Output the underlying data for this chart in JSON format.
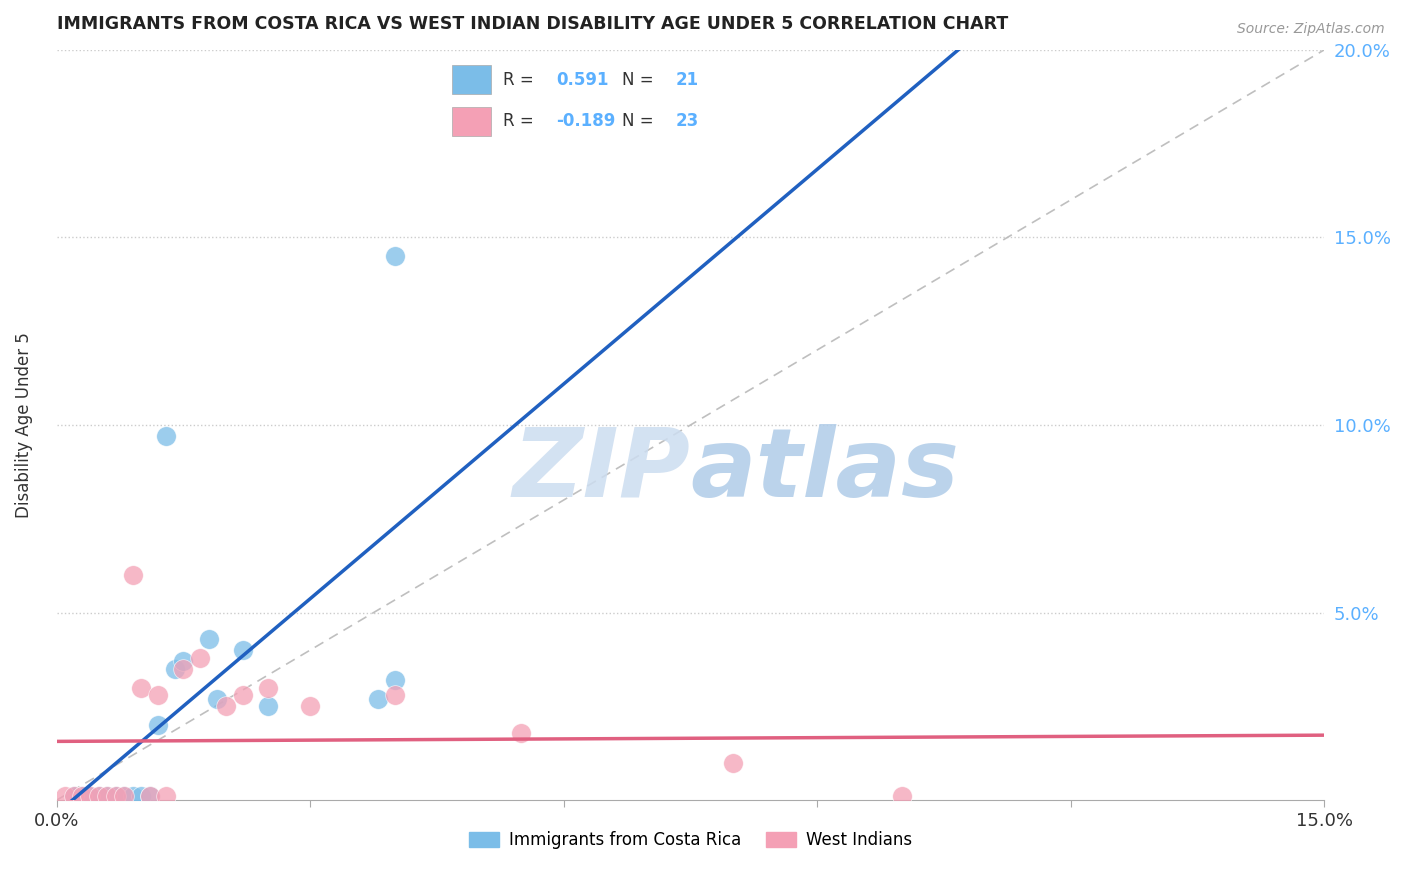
{
  "title": "IMMIGRANTS FROM COSTA RICA VS WEST INDIAN DISABILITY AGE UNDER 5 CORRELATION CHART",
  "source": "Source: ZipAtlas.com",
  "ylabel": "Disability Age Under 5",
  "xlim": [
    0.0,
    0.15
  ],
  "ylim": [
    0.0,
    0.2
  ],
  "blue_R": 0.591,
  "blue_N": 21,
  "pink_R": -0.189,
  "pink_N": 23,
  "blue_color": "#7bbde8",
  "pink_color": "#f4a0b5",
  "blue_line_color": "#2060c0",
  "pink_line_color": "#e06080",
  "right_axis_color": "#5bb0ff",
  "watermark_color": "#d0e8f5",
  "diag_line_color": "#b8b8b8",
  "blue_points": [
    [
      0.002,
      0.001
    ],
    [
      0.003,
      0.001
    ],
    [
      0.004,
      0.001
    ],
    [
      0.005,
      0.001
    ],
    [
      0.006,
      0.001
    ],
    [
      0.007,
      0.001
    ],
    [
      0.008,
      0.001
    ],
    [
      0.009,
      0.001
    ],
    [
      0.01,
      0.001
    ],
    [
      0.011,
      0.001
    ],
    [
      0.012,
      0.02
    ],
    [
      0.013,
      0.097
    ],
    [
      0.014,
      0.035
    ],
    [
      0.015,
      0.037
    ],
    [
      0.018,
      0.043
    ],
    [
      0.019,
      0.027
    ],
    [
      0.022,
      0.04
    ],
    [
      0.025,
      0.025
    ],
    [
      0.038,
      0.027
    ],
    [
      0.04,
      0.032
    ],
    [
      0.04,
      0.145
    ]
  ],
  "pink_points": [
    [
      0.001,
      0.001
    ],
    [
      0.002,
      0.001
    ],
    [
      0.003,
      0.001
    ],
    [
      0.004,
      0.001
    ],
    [
      0.005,
      0.001
    ],
    [
      0.006,
      0.001
    ],
    [
      0.007,
      0.001
    ],
    [
      0.008,
      0.001
    ],
    [
      0.009,
      0.06
    ],
    [
      0.01,
      0.03
    ],
    [
      0.011,
      0.001
    ],
    [
      0.012,
      0.028
    ],
    [
      0.013,
      0.001
    ],
    [
      0.015,
      0.035
    ],
    [
      0.017,
      0.038
    ],
    [
      0.02,
      0.025
    ],
    [
      0.022,
      0.028
    ],
    [
      0.025,
      0.03
    ],
    [
      0.03,
      0.025
    ],
    [
      0.04,
      0.028
    ],
    [
      0.055,
      0.018
    ],
    [
      0.08,
      0.01
    ],
    [
      0.1,
      0.001
    ]
  ],
  "xtick_positions": [
    0.0,
    0.03,
    0.06,
    0.09,
    0.12,
    0.15
  ],
  "ytick_positions": [
    0.0,
    0.05,
    0.1,
    0.15,
    0.2
  ]
}
